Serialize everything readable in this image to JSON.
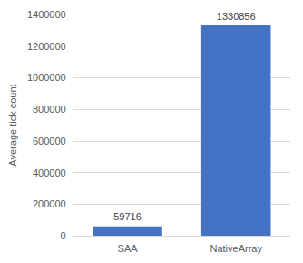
{
  "chart_data": {
    "type": "bar",
    "y_label": "Average tick count",
    "categories": [
      "SAA",
      "NativeArray"
    ],
    "values": [
      59716,
      1330856
    ],
    "color": "#4472c4",
    "ylim": [
      0,
      1400000
    ],
    "yticks": [
      0,
      200000,
      400000,
      600000,
      800000,
      1000000,
      1200000,
      1400000
    ],
    "grid": true,
    "data_labels": true
  }
}
